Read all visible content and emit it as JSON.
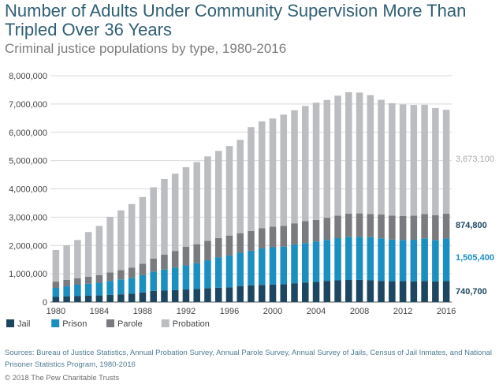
{
  "header": {
    "title": "Number of Adults Under Community Supervision More Than Tripled Over 36 Years",
    "subtitle": "Criminal justice populations by type, 1980-2016"
  },
  "footer": {
    "sources": "Sources: Bureau of Justice Statistics, Annual Probation Survey, Annual Parole Survey, Annual Survey of Jails, Census of Jail Inmates, and National Prisoner Statistics Program, 1980-2016",
    "copyright": "© 2018 The Pew Charitable Trusts"
  },
  "chart_data": {
    "type": "bar",
    "stacked": true,
    "ylim": [
      0,
      8000000
    ],
    "yticks": [
      "0",
      "1,000,000",
      "2,000,000",
      "3,000,000",
      "4,000,000",
      "5,000,000",
      "6,000,000",
      "7,000,000",
      "8,000,000"
    ],
    "xticks": [
      "1980",
      "1984",
      "1988",
      "1992",
      "1996",
      "2000",
      "2004",
      "2008",
      "2012",
      "2016"
    ],
    "grid": true,
    "legend_position": "bottom-left",
    "categories": [
      1980,
      1981,
      1982,
      1983,
      1984,
      1985,
      1986,
      1987,
      1988,
      1989,
      1990,
      1991,
      1992,
      1993,
      1994,
      1995,
      1996,
      1997,
      1998,
      1999,
      2000,
      2001,
      2002,
      2003,
      2004,
      2005,
      2006,
      2007,
      2008,
      2009,
      2010,
      2011,
      2012,
      2013,
      2014,
      2015,
      2016
    ],
    "series": [
      {
        "name": "Jail",
        "color": "#1d4660",
        "values": [
          182000,
          196000,
          210000,
          224000,
          234000,
          256000,
          274000,
          295000,
          343000,
          395000,
          405000,
          426000,
          444000,
          459000,
          486000,
          507000,
          518000,
          567000,
          592000,
          606000,
          621000,
          631000,
          665000,
          691000,
          714000,
          748000,
          766000,
          780000,
          785000,
          767000,
          748000,
          736000,
          744000,
          731000,
          745000,
          728000,
          740700
        ]
      },
      {
        "name": "Prison",
        "color": "#1a8fc0",
        "values": [
          320000,
          360000,
          403000,
          423000,
          448000,
          488000,
          527000,
          560000,
          607000,
          683000,
          743000,
          792000,
          851000,
          910000,
          990000,
          1078000,
          1128000,
          1177000,
          1224000,
          1288000,
          1316000,
          1330000,
          1367000,
          1392000,
          1421000,
          1448000,
          1492000,
          1517000,
          1522000,
          1524000,
          1505000,
          1469000,
          1448000,
          1470000,
          1508000,
          1468000,
          1505400
        ]
      },
      {
        "name": "Parole",
        "color": "#7a7b7e",
        "values": [
          220000,
          226000,
          224000,
          246000,
          266000,
          300000,
          326000,
          362000,
          407000,
          457000,
          531000,
          590000,
          658000,
          676000,
          690000,
          679000,
          705000,
          690000,
          696000,
          714000,
          724000,
          732000,
          751000,
          775000,
          766000,
          784000,
          799000,
          827000,
          826000,
          824000,
          840000,
          853000,
          851000,
          855000,
          857000,
          870500,
          874800
        ]
      },
      {
        "name": "Probation",
        "color": "#bcbdc0",
        "values": [
          1118000,
          1225000,
          1357000,
          1582000,
          1740000,
          1968000,
          2114000,
          2247000,
          2356000,
          2522000,
          2670000,
          2729000,
          2812000,
          2903000,
          2981000,
          3078000,
          3164000,
          3297000,
          3670000,
          3780000,
          3826000,
          3932000,
          3995000,
          4074000,
          4144000,
          4162000,
          4237000,
          4293000,
          4270000,
          4198000,
          4055000,
          3971000,
          3942000,
          3910000,
          3864000,
          3789800,
          3673100
        ]
      }
    ],
    "end_labels": [
      {
        "series": "Probation",
        "text": "3,673,100"
      },
      {
        "series": "Parole",
        "text": "874,800"
      },
      {
        "series": "Prison",
        "text": "1,505,400"
      },
      {
        "series": "Jail",
        "text": "740,700"
      }
    ]
  }
}
